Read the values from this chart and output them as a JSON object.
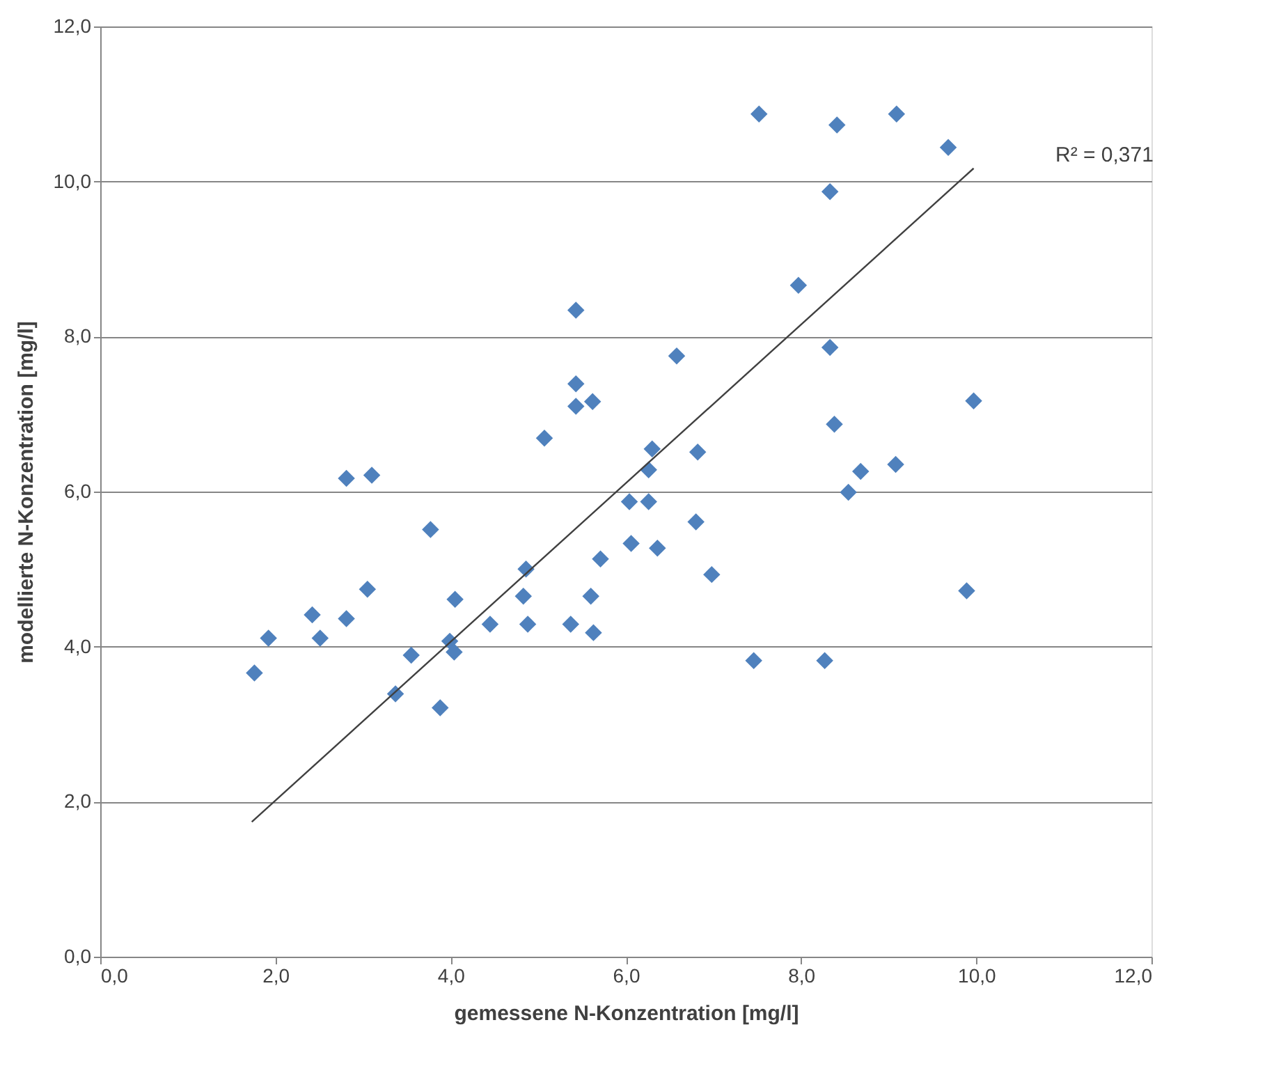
{
  "chart_data": {
    "type": "scatter",
    "xlabel": "gemessene N-Konzentration  [mg/l]",
    "ylabel": "modellierte N-Konzentration  [mg/l]",
    "xlim": [
      0,
      12
    ],
    "ylim": [
      0,
      12
    ],
    "xticks": [
      {
        "value": 0,
        "label": "0,0"
      },
      {
        "value": 2,
        "label": "2,0"
      },
      {
        "value": 4,
        "label": "4,0"
      },
      {
        "value": 6,
        "label": "6,0"
      },
      {
        "value": 8,
        "label": "8,0"
      },
      {
        "value": 10,
        "label": "10,0"
      },
      {
        "value": 12,
        "label": "12,0"
      }
    ],
    "yticks": [
      {
        "value": 0,
        "label": "0,0"
      },
      {
        "value": 2,
        "label": "2,0"
      },
      {
        "value": 4,
        "label": "4,0"
      },
      {
        "value": 6,
        "label": "6,0"
      },
      {
        "value": 8,
        "label": "8,0"
      },
      {
        "value": 10,
        "label": "10,0"
      },
      {
        "value": 12,
        "label": "12,0"
      }
    ],
    "grid": "y",
    "marker": "diamond",
    "series": [
      {
        "color": "#4f81bd",
        "x": [
          1.76,
          1.92,
          2.42,
          2.51,
          2.81,
          2.81,
          3.1,
          3.05,
          3.77,
          3.37,
          3.55,
          3.88,
          4.05,
          3.99,
          4.04,
          4.45,
          4.86,
          4.83,
          4.88,
          5.07,
          5.37,
          5.43,
          5.43,
          5.43,
          5.62,
          5.6,
          5.63,
          5.71,
          6.04,
          6.06,
          6.26,
          6.26,
          6.3,
          6.36,
          6.58,
          6.82,
          6.8,
          6.98,
          7.46,
          7.52,
          7.97,
          8.41,
          8.33,
          8.33,
          8.38,
          8.27,
          8.54,
          8.68,
          9.08,
          9.09,
          9.68,
          9.97,
          9.89
        ],
        "values": [
          3.66,
          4.11,
          4.41,
          4.11,
          4.36,
          6.17,
          6.21,
          4.74,
          5.51,
          3.39,
          3.89,
          3.21,
          4.61,
          4.07,
          3.93,
          4.29,
          5.0,
          4.65,
          4.29,
          6.69,
          4.29,
          8.34,
          7.39,
          7.1,
          7.16,
          4.65,
          4.18,
          5.13,
          5.87,
          5.33,
          5.87,
          6.28,
          6.55,
          5.27,
          7.75,
          6.51,
          5.61,
          4.93,
          3.82,
          10.87,
          8.66,
          10.73,
          9.87,
          7.86,
          6.87,
          3.82,
          5.99,
          6.26,
          6.35,
          10.87,
          10.44,
          7.17,
          4.72
        ]
      },
      {
        "type": "line",
        "color": "#404040",
        "line_style": "solid",
        "marker": "none",
        "x": [
          1.73,
          9.97
        ],
        "values": [
          1.74,
          10.17
        ]
      }
    ],
    "annotations": [
      "R² = 0,371"
    ]
  }
}
